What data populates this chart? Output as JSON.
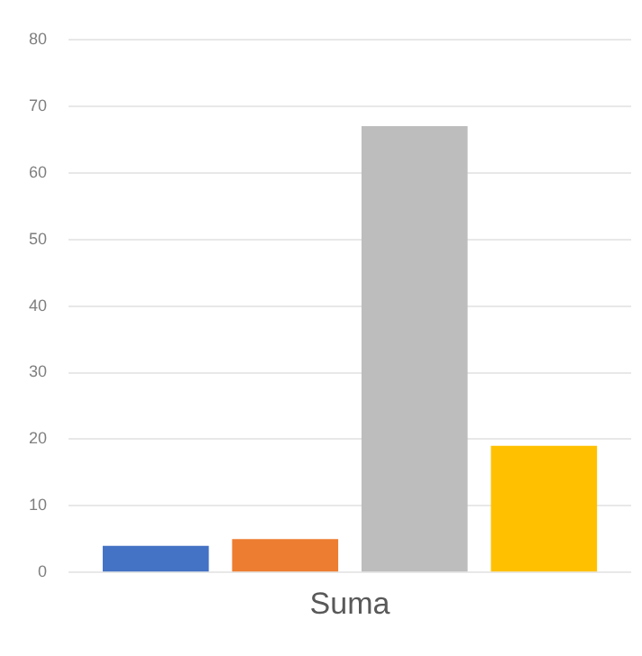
{
  "chart_data": {
    "type": "bar",
    "categories": [
      "Suma"
    ],
    "series": [
      {
        "color": "#4472c4",
        "values": [
          4
        ]
      },
      {
        "color": "#ed7d31",
        "values": [
          5
        ]
      },
      {
        "color": "#bdbdbd",
        "values": [
          67
        ]
      },
      {
        "color": "#ffc000",
        "values": [
          19
        ]
      }
    ],
    "ylim": [
      0,
      80
    ],
    "yticks": [
      0,
      10,
      20,
      30,
      40,
      50,
      60,
      70,
      80
    ],
    "grid": "y",
    "legend": false
  }
}
